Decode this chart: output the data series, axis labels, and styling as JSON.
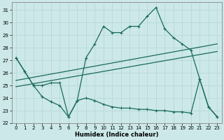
{
  "xlabel": "Humidex (Indice chaleur)",
  "bg_color": "#cce8e8",
  "grid_color": "#add8d8",
  "line_color": "#1a6b5a",
  "xlim": [
    -0.5,
    23.5
  ],
  "ylim": [
    22.0,
    31.6
  ],
  "xticks": [
    0,
    1,
    2,
    3,
    4,
    5,
    6,
    7,
    8,
    9,
    10,
    11,
    12,
    13,
    14,
    15,
    16,
    17,
    18,
    19,
    20,
    21,
    22,
    23
  ],
  "yticks": [
    22,
    23,
    24,
    25,
    26,
    27,
    28,
    29,
    30,
    31
  ],
  "curve1_x": [
    0,
    1,
    2,
    3,
    4,
    5,
    6,
    7,
    8,
    9,
    10,
    11,
    12,
    13,
    14,
    15,
    16,
    17,
    18,
    19,
    20,
    21,
    22,
    23
  ],
  "curve1_y": [
    27.2,
    26.1,
    25.0,
    25.0,
    25.2,
    25.2,
    22.5,
    23.8,
    27.2,
    28.3,
    29.7,
    29.2,
    29.2,
    29.7,
    29.7,
    30.5,
    31.2,
    29.5,
    28.8,
    28.3,
    27.8,
    25.5,
    23.3,
    22.5
  ],
  "curve2_x": [
    0,
    1,
    2,
    3,
    4,
    5,
    6,
    7,
    8,
    9,
    10,
    11,
    12,
    13,
    14,
    15,
    16,
    17,
    18,
    19,
    20,
    21,
    22,
    23
  ],
  "curve2_y": [
    27.2,
    26.1,
    25.0,
    24.1,
    23.7,
    23.4,
    22.5,
    23.8,
    24.0,
    23.8,
    23.5,
    23.3,
    23.2,
    23.2,
    23.1,
    23.1,
    23.0,
    23.0,
    22.9,
    22.9,
    22.8,
    25.5,
    23.3,
    22.5
  ],
  "line1_x": [
    0,
    23
  ],
  "line1_y": [
    25.4,
    28.3
  ],
  "line2_x": [
    0,
    23
  ],
  "line2_y": [
    24.9,
    27.7
  ]
}
